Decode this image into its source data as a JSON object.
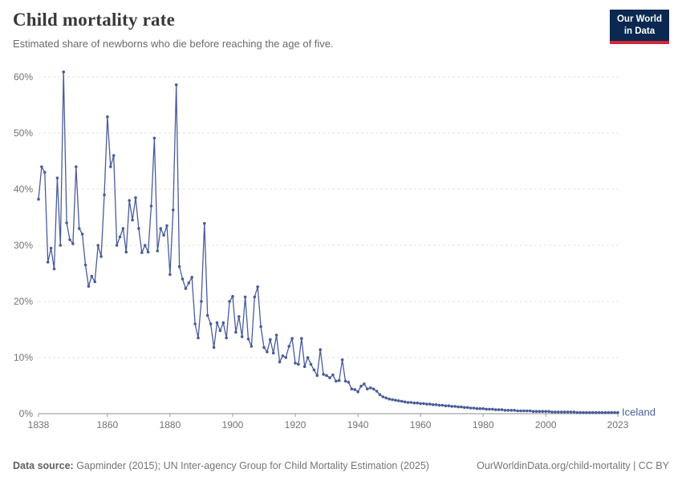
{
  "header": {
    "title": "Child mortality rate",
    "subtitle": "Estimated share of newborns who die before reaching the age of five."
  },
  "logo": {
    "line1": "Our World",
    "line2": "in Data",
    "bg": "#0a2850",
    "accent": "#d1283c"
  },
  "footer": {
    "source_label": "Data source:",
    "source_text": " Gapminder (2015); UN Inter-agency Group for Child Mortality Estimation (2025)",
    "right": "OurWorldinData.org/child-mortality | CC BY"
  },
  "chart_data": {
    "type": "line",
    "title": "Child mortality rate",
    "subtitle": "Estimated share of newborns who die before reaching the age of five.",
    "xlabel": "",
    "ylabel": "",
    "ylim": [
      0,
      60
    ],
    "yticks": [
      0,
      10,
      20,
      30,
      40,
      50,
      60
    ],
    "ytick_labels": [
      "0%",
      "10%",
      "20%",
      "30%",
      "40%",
      "50%",
      "60%"
    ],
    "xticks": [
      1838,
      1860,
      1880,
      1900,
      1920,
      1940,
      1960,
      1980,
      2000,
      2023
    ],
    "grid": "horizontal-dashed",
    "legend": "end-of-line-label",
    "line_color": "#4a5c99",
    "entity_label": "Iceland",
    "x": {
      "start": 1838,
      "end": 2023,
      "step": 1
    },
    "series": [
      {
        "name": "Iceland",
        "values": [
          38.2,
          44.0,
          43.0,
          27.0,
          29.5,
          25.8,
          42.0,
          30.0,
          60.9,
          34.0,
          31.0,
          30.3,
          44.0,
          33.0,
          32.0,
          26.5,
          22.7,
          24.5,
          23.5,
          30.0,
          28.0,
          39.0,
          52.9,
          44.0,
          46.0,
          30.0,
          31.5,
          33.0,
          28.8,
          38.0,
          34.5,
          38.5,
          33.0,
          28.7,
          30.0,
          28.8,
          37.0,
          49.1,
          29.0,
          33.0,
          31.8,
          33.5,
          24.8,
          36.3,
          58.6,
          26.2,
          24.0,
          22.3,
          23.3,
          24.3,
          16.0,
          13.5,
          20.0,
          33.9,
          17.5,
          16.0,
          11.8,
          16.2,
          14.8,
          16.2,
          13.5,
          20.0,
          20.9,
          14.5,
          17.3,
          13.7,
          20.8,
          13.3,
          12.0,
          20.8,
          22.6,
          15.5,
          11.8,
          11.0,
          13.2,
          10.8,
          14.0,
          9.2,
          10.3,
          10.0,
          12.0,
          13.4,
          9.0,
          8.8,
          13.4,
          8.4,
          10.0,
          8.8,
          7.8,
          6.8,
          11.4,
          7.0,
          6.8,
          6.4,
          6.9,
          5.8,
          5.9,
          9.6,
          5.8,
          5.6,
          4.4,
          4.3,
          3.9,
          4.9,
          5.3,
          4.4,
          4.6,
          4.4,
          4.0,
          3.4,
          3.0,
          2.8,
          2.6,
          2.5,
          2.4,
          2.3,
          2.2,
          2.1,
          2.0,
          2.0,
          1.9,
          1.9,
          1.8,
          1.8,
          1.7,
          1.7,
          1.6,
          1.6,
          1.5,
          1.5,
          1.4,
          1.4,
          1.3,
          1.3,
          1.2,
          1.2,
          1.1,
          1.1,
          1.0,
          1.0,
          0.9,
          0.9,
          0.9,
          0.8,
          0.8,
          0.8,
          0.7,
          0.7,
          0.7,
          0.6,
          0.6,
          0.6,
          0.6,
          0.5,
          0.5,
          0.5,
          0.5,
          0.5,
          0.4,
          0.4,
          0.4,
          0.4,
          0.4,
          0.4,
          0.3,
          0.3,
          0.3,
          0.3,
          0.3,
          0.3,
          0.3,
          0.3,
          0.2,
          0.2,
          0.2,
          0.2,
          0.2,
          0.2,
          0.2,
          0.2,
          0.2,
          0.2,
          0.2,
          0.2,
          0.2,
          0.2
        ]
      }
    ]
  }
}
